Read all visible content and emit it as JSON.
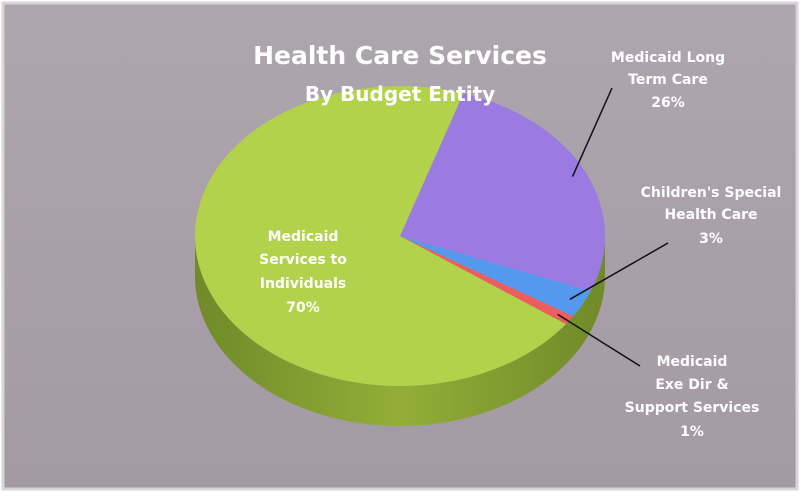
{
  "chart_data": {
    "type": "pie",
    "title": "Health Care Services",
    "subtitle": "By Budget Entity",
    "slices": [
      {
        "label_lines": [
          "Medicaid Long",
          "Term Care"
        ],
        "percent_label": "26%",
        "value": 26,
        "color": "#9b7be2"
      },
      {
        "label_lines": [
          "Children's Special",
          "Health Care"
        ],
        "percent_label": "3%",
        "value": 3,
        "color": "#5599ee"
      },
      {
        "label_lines": [
          "Medicaid",
          "Exe Dir &",
          "Support Services"
        ],
        "percent_label": "1%",
        "value": 1,
        "color": "#ec5d5d"
      },
      {
        "label_lines": [
          "Medicaid",
          "Services to",
          "Individuals"
        ],
        "percent_label": "70%",
        "value": 70,
        "color": "#b2d24c"
      }
    ],
    "colors": {
      "background": "#a8a0a8",
      "pie_side": "#88a030",
      "label_text": "#ffffff",
      "leader_line": "#111111"
    }
  }
}
